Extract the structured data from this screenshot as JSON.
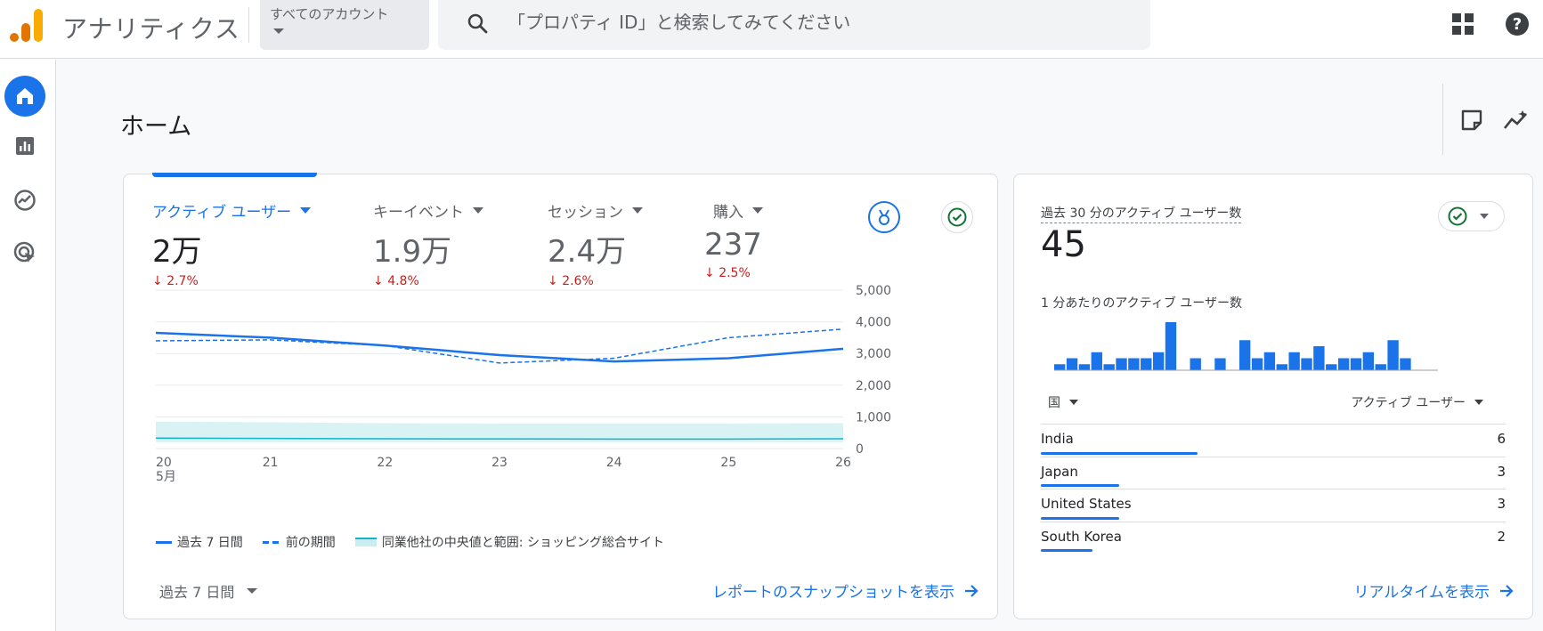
{
  "header": {
    "app_title": "アナリティクス",
    "account_label": "すべてのアカウント",
    "search_placeholder": "「プロパティ ID」と検索してみてください"
  },
  "page": {
    "title": "ホーム"
  },
  "overview": {
    "metrics": [
      {
        "label": "アクティブ ユーザー",
        "value": "2万",
        "delta": "2.7%",
        "active": true
      },
      {
        "label": "キーイベント",
        "value": "1.9万",
        "delta": "4.8%"
      },
      {
        "label": "セッション",
        "value": "2.4万",
        "delta": "2.6%"
      },
      {
        "label": "購入",
        "value": "237",
        "delta": "2.5%"
      }
    ],
    "legend": {
      "current": "過去 7 日間",
      "previous": "前の期間",
      "benchmark": "同業他社の中央値と範囲: ショッピング総合サイト"
    },
    "period_label": "過去 7 日間",
    "snapshot_link": "レポートのスナップショットを表示"
  },
  "chart_data": {
    "type": "line",
    "x": [
      "20",
      "21",
      "22",
      "23",
      "24",
      "25",
      "26"
    ],
    "x_sublabel": "5月",
    "ylim": [
      0,
      5000
    ],
    "yticks": [
      "0",
      "1,000",
      "2,000",
      "3,000",
      "4,000",
      "5,000"
    ],
    "series": [
      {
        "name": "過去 7 日間",
        "values": [
          3650,
          3500,
          3250,
          2950,
          2750,
          2850,
          3150
        ],
        "style": "solid"
      },
      {
        "name": "前の期間",
        "values": [
          3400,
          3430,
          3250,
          2700,
          2850,
          3500,
          3770
        ],
        "style": "dashed"
      },
      {
        "name": "同業他社の中央値と範囲: ショッピング総合サイト",
        "values": [
          330,
          320,
          310,
          305,
          300,
          300,
          310
        ],
        "band": [
          [
            200,
            850
          ],
          [
            200,
            830
          ],
          [
            200,
            800
          ],
          [
            200,
            790
          ],
          [
            200,
            790
          ],
          [
            200,
            790
          ],
          [
            200,
            800
          ]
        ]
      }
    ],
    "colors": {
      "line": "#1a73e8",
      "band": "#c9eef1",
      "median": "#12b5cb"
    },
    "grid": true
  },
  "realtime": {
    "title": "過去 30 分のアクティブ ユーザー数",
    "value": "45",
    "per_minute_label": "1 分あたりのアクティブ ユーザー数",
    "per_minute_counts": [
      1,
      2,
      1,
      3,
      1,
      2,
      2,
      2,
      3,
      8,
      0,
      2,
      0,
      2,
      0,
      5,
      2,
      3,
      1,
      3,
      2,
      4,
      1,
      2,
      2,
      3,
      1,
      5,
      2,
      0
    ],
    "col_country": "国",
    "col_users": "アクティブ ユーザー",
    "rows": [
      {
        "country": "India",
        "count": "6",
        "share": 1.0
      },
      {
        "country": "Japan",
        "count": "3",
        "share": 0.5
      },
      {
        "country": "United States",
        "count": "3",
        "share": 0.5
      },
      {
        "country": "South Korea",
        "count": "2",
        "share": 0.33
      }
    ],
    "link": "リアルタイムを表示"
  }
}
